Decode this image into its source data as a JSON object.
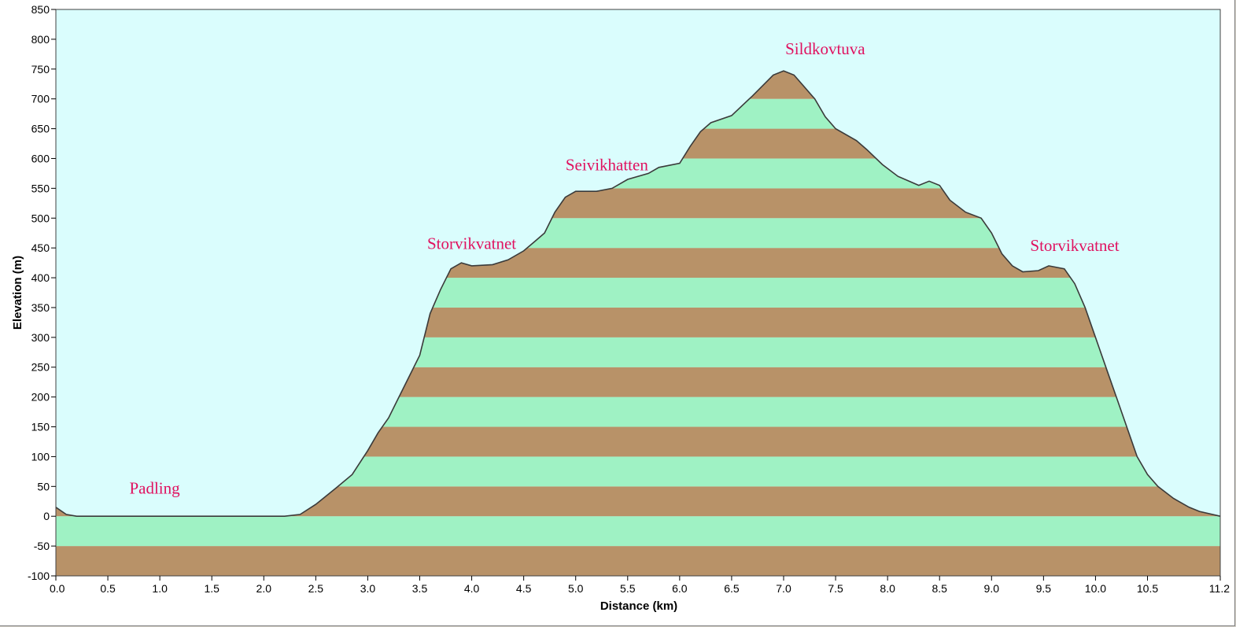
{
  "chart_data": {
    "type": "area",
    "xlabel": "Distance   (km)",
    "ylabel": "Elevation (m)",
    "xlim": [
      0,
      11.2
    ],
    "ylim": [
      -100,
      850
    ],
    "x_ticks": [
      "0.0",
      "0.5",
      "1.0",
      "1.5",
      "2.0",
      "2.5",
      "3.0",
      "3.5",
      "4.0",
      "4.5",
      "5.0",
      "5.5",
      "6.0",
      "6.5",
      "7.0",
      "7.5",
      "8.0",
      "8.5",
      "9.0",
      "9.5",
      "10.0",
      "10.5",
      "11.2"
    ],
    "y_ticks": [
      "-100",
      "-50",
      "0",
      "50",
      "100",
      "150",
      "200",
      "250",
      "300",
      "350",
      "400",
      "450",
      "500",
      "550",
      "600",
      "650",
      "700",
      "750",
      "800",
      "850"
    ],
    "band_step": 50,
    "colors": {
      "background": "#dafdfd",
      "band_green": "#9ff2c4",
      "band_brown": "#b89268",
      "profile_line": "#3a3a3a",
      "annotation_text": "#e0115f"
    },
    "profile": [
      [
        0.0,
        15
      ],
      [
        0.1,
        3
      ],
      [
        0.2,
        0
      ],
      [
        0.5,
        0
      ],
      [
        1.0,
        0
      ],
      [
        1.5,
        0
      ],
      [
        2.0,
        0
      ],
      [
        2.2,
        0
      ],
      [
        2.35,
        3
      ],
      [
        2.5,
        20
      ],
      [
        2.7,
        48
      ],
      [
        2.85,
        70
      ],
      [
        3.0,
        110
      ],
      [
        3.1,
        140
      ],
      [
        3.2,
        165
      ],
      [
        3.3,
        200
      ],
      [
        3.4,
        235
      ],
      [
        3.5,
        270
      ],
      [
        3.6,
        340
      ],
      [
        3.7,
        380
      ],
      [
        3.8,
        415
      ],
      [
        3.9,
        425
      ],
      [
        4.0,
        420
      ],
      [
        4.2,
        422
      ],
      [
        4.35,
        430
      ],
      [
        4.5,
        445
      ],
      [
        4.6,
        460
      ],
      [
        4.7,
        475
      ],
      [
        4.8,
        510
      ],
      [
        4.9,
        535
      ],
      [
        5.0,
        545
      ],
      [
        5.2,
        545
      ],
      [
        5.35,
        550
      ],
      [
        5.5,
        565
      ],
      [
        5.7,
        575
      ],
      [
        5.8,
        585
      ],
      [
        6.0,
        592
      ],
      [
        6.1,
        620
      ],
      [
        6.2,
        645
      ],
      [
        6.3,
        660
      ],
      [
        6.5,
        672
      ],
      [
        6.7,
        705
      ],
      [
        6.9,
        740
      ],
      [
        7.0,
        747
      ],
      [
        7.1,
        740
      ],
      [
        7.2,
        720
      ],
      [
        7.3,
        700
      ],
      [
        7.4,
        670
      ],
      [
        7.5,
        650
      ],
      [
        7.7,
        630
      ],
      [
        7.8,
        615
      ],
      [
        7.95,
        590
      ],
      [
        8.1,
        570
      ],
      [
        8.3,
        555
      ],
      [
        8.4,
        562
      ],
      [
        8.5,
        555
      ],
      [
        8.6,
        530
      ],
      [
        8.75,
        510
      ],
      [
        8.9,
        500
      ],
      [
        9.0,
        475
      ],
      [
        9.1,
        440
      ],
      [
        9.2,
        420
      ],
      [
        9.3,
        410
      ],
      [
        9.45,
        412
      ],
      [
        9.55,
        420
      ],
      [
        9.7,
        415
      ],
      [
        9.8,
        390
      ],
      [
        9.9,
        350
      ],
      [
        10.0,
        300
      ],
      [
        10.1,
        250
      ],
      [
        10.2,
        200
      ],
      [
        10.3,
        150
      ],
      [
        10.4,
        100
      ],
      [
        10.5,
        70
      ],
      [
        10.6,
        50
      ],
      [
        10.75,
        30
      ],
      [
        10.9,
        15
      ],
      [
        11.0,
        8
      ],
      [
        11.2,
        0
      ]
    ],
    "annotations": [
      {
        "text": "Padling",
        "x": 0.95,
        "y": 38
      },
      {
        "text": "Storvikvatnet",
        "x": 4.0,
        "y": 448
      },
      {
        "text": "Seivikhatten",
        "x": 5.3,
        "y": 580
      },
      {
        "text": "Sildkovtuva",
        "x": 7.4,
        "y": 775
      },
      {
        "text": "Storvikvatnet",
        "x": 9.8,
        "y": 445
      }
    ]
  }
}
